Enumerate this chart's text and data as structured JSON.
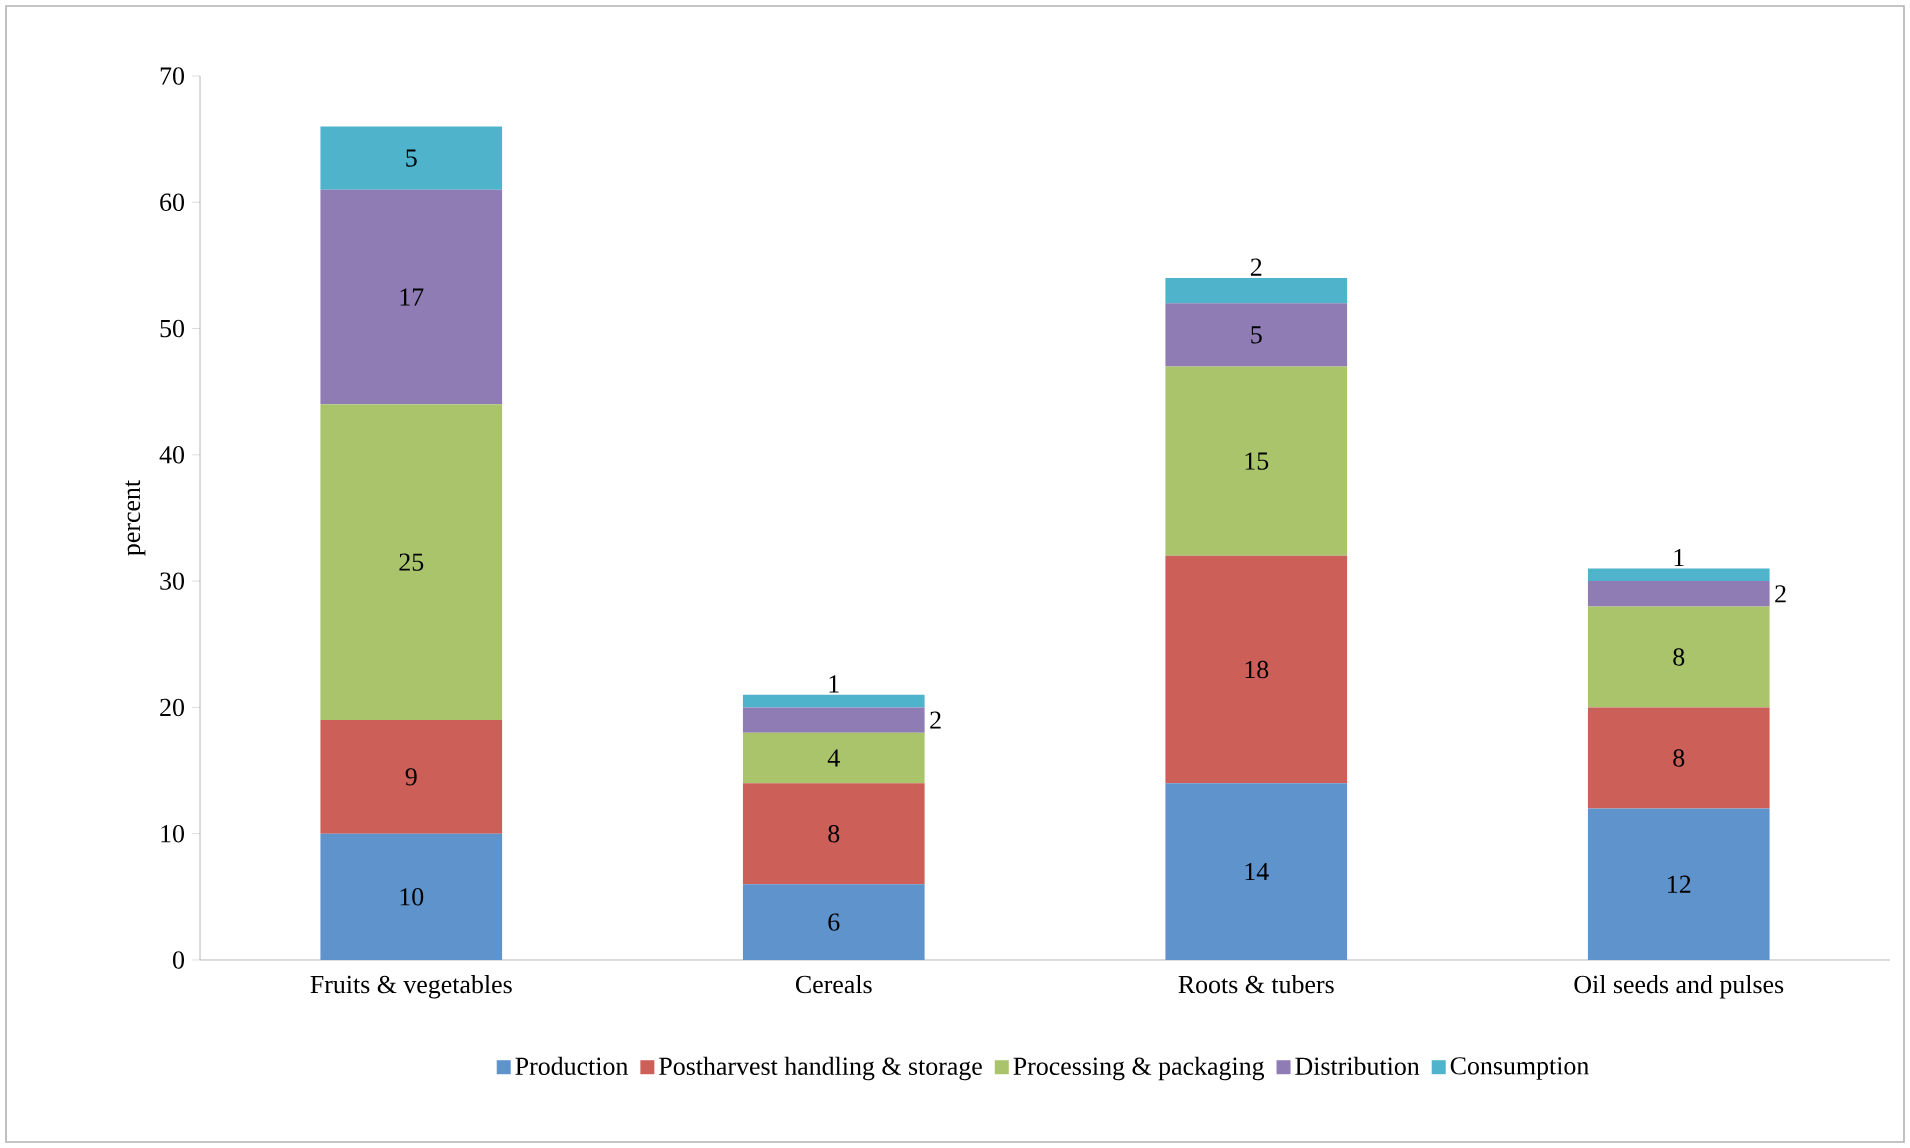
{
  "chart_data": {
    "type": "bar",
    "stacked": true,
    "ylabel": "percent",
    "categories": [
      "Fruits & vegetables",
      "Cereals",
      "Roots & tubers",
      "Oil seeds and pulses"
    ],
    "series": [
      {
        "name": "Production",
        "color": "#5f93cc",
        "values": [
          10,
          6,
          14,
          12
        ]
      },
      {
        "name": "Postharvest handling & storage",
        "color": "#cd5f59",
        "values": [
          9,
          8,
          18,
          8
        ]
      },
      {
        "name": "Processing & packaging",
        "color": "#a9c46b",
        "values": [
          25,
          4,
          15,
          8
        ]
      },
      {
        "name": "Distribution",
        "color": "#8f7cb5",
        "values": [
          17,
          2,
          5,
          2
        ]
      },
      {
        "name": "Consumption",
        "color": "#4fb3cc",
        "values": [
          5,
          1,
          2,
          1
        ]
      }
    ],
    "ylim": [
      0,
      70
    ],
    "yticks": [
      0,
      10,
      20,
      30,
      40,
      50,
      60,
      70
    ],
    "data_labels": true,
    "legend": "bottom",
    "grid": false
  }
}
